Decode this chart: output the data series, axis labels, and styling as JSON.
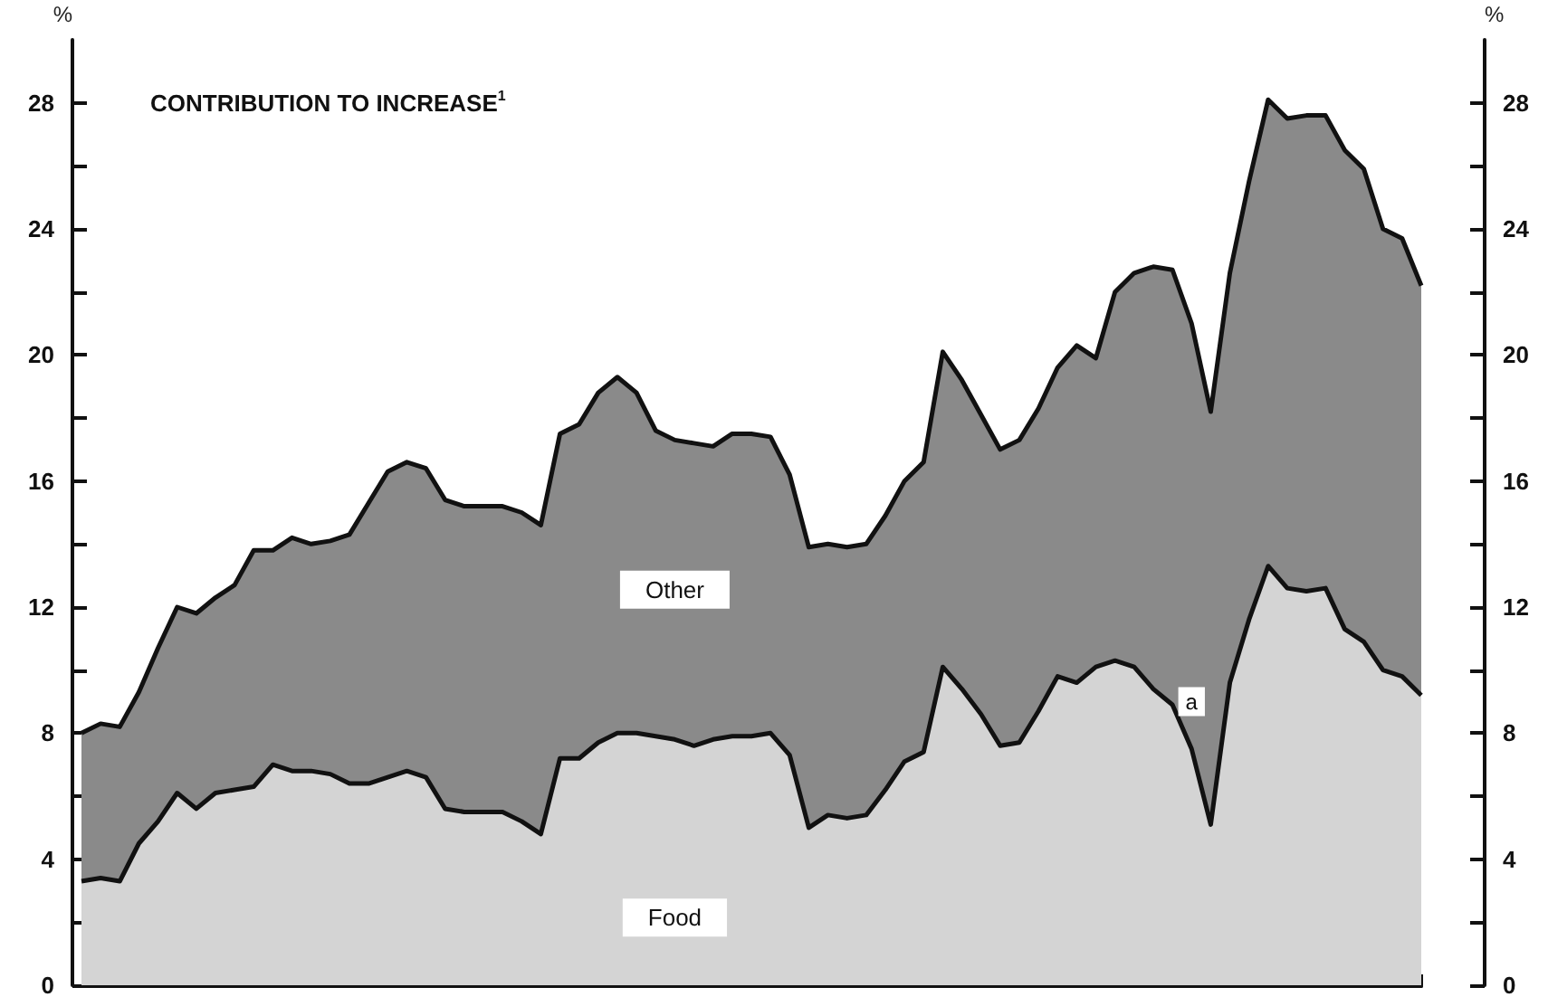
{
  "chart_data": {
    "type": "area",
    "stacked": true,
    "title": "CONTRIBUTION TO INCREASE$^{1}$",
    "ylabel": "%",
    "y2label": "%",
    "categories": [
      null,
      null,
      null,
      null,
      null,
      null,
      null,
      null,
      null,
      null,
      null,
      null,
      null,
      null,
      null,
      null,
      null,
      null,
      null,
      null,
      null,
      null,
      null,
      null,
      null,
      null,
      null,
      null,
      null,
      null,
      null,
      null,
      null,
      null,
      null,
      null,
      null,
      null,
      null,
      null,
      null,
      null,
      null,
      null,
      null,
      null,
      null,
      null,
      null,
      null,
      null,
      null,
      null,
      null,
      null,
      null,
      null,
      null,
      null,
      null,
      null,
      null,
      null,
      null,
      null,
      null,
      null,
      null,
      null,
      null,
      null
    ],
    "series": [
      {
        "name": "Food",
        "color": "#d4d4d4",
        "values": [
          3.3,
          3.4,
          3.3,
          4.5,
          5.2,
          6.1,
          5.6,
          6.1,
          6.2,
          6.3,
          7.0,
          6.8,
          6.8,
          6.7,
          6.4,
          6.4,
          6.6,
          6.8,
          6.6,
          5.6,
          5.5,
          5.5,
          5.5,
          5.2,
          4.8,
          7.2,
          7.2,
          7.7,
          8.0,
          8.0,
          7.9,
          7.8,
          7.6,
          7.8,
          7.9,
          7.9,
          8.0,
          7.3,
          5.0,
          5.4,
          5.3,
          5.4,
          6.2,
          7.1,
          7.4,
          10.1,
          9.4,
          8.6,
          7.6,
          7.7,
          8.7,
          9.8,
          9.6,
          10.1,
          10.3,
          10.1,
          9.4,
          8.9,
          7.5,
          5.1,
          9.6,
          11.6,
          13.3,
          12.6,
          12.5,
          12.6,
          11.3,
          10.9,
          10.0,
          9.8,
          9.2
        ]
      },
      {
        "name": "Other",
        "color": "#8a8a8a",
        "values": [
          4.7,
          4.9,
          4.9,
          4.8,
          5.5,
          5.9,
          6.2,
          6.2,
          6.5,
          7.5,
          6.8,
          7.4,
          7.2,
          7.4,
          7.9,
          8.9,
          9.7,
          9.8,
          9.8,
          9.8,
          9.7,
          9.7,
          9.7,
          9.8,
          9.8,
          10.3,
          10.6,
          11.1,
          11.3,
          10.8,
          9.7,
          9.5,
          9.6,
          9.3,
          9.6,
          9.6,
          9.4,
          8.9,
          8.9,
          8.6,
          8.6,
          8.6,
          8.7,
          8.9,
          9.2,
          10.0,
          9.8,
          9.5,
          9.4,
          9.6,
          9.6,
          9.8,
          10.7,
          9.8,
          11.7,
          12.5,
          13.4,
          13.8,
          13.5,
          13.1,
          13.0,
          13.9,
          14.8,
          14.9,
          15.1,
          15.0,
          15.2,
          15.0,
          14.0,
          13.9,
          13.0
        ]
      }
    ],
    "ylim": [
      0,
      30
    ],
    "yticks": [
      0,
      {
        "value": 2,
        "label": null
      },
      4,
      {
        "value": 6,
        "label": null
      },
      8,
      {
        "value": 10,
        "label": null
      },
      12,
      {
        "value": 14,
        "label": null
      },
      16,
      {
        "value": 18,
        "label": null
      },
      20,
      {
        "value": 22,
        "label": null
      },
      24,
      {
        "value": 26,
        "label": null
      },
      28
    ],
    "y2lim": [
      0,
      30
    ],
    "y2ticks": [
      0,
      {
        "value": 2,
        "label": null
      },
      4,
      {
        "value": 6,
        "label": null
      },
      8,
      {
        "value": 10,
        "label": null
      },
      12,
      {
        "value": 14,
        "label": null
      },
      16,
      {
        "value": 18,
        "label": null
      },
      20,
      {
        "value": 22,
        "label": null
      },
      24,
      {
        "value": 26,
        "label": null
      },
      28
    ],
    "tick_labels": "y",
    "grid": false,
    "legend": false,
    "marker": "none",
    "line_style": "solid",
    "annotations": [
      "a"
    ]
  }
}
